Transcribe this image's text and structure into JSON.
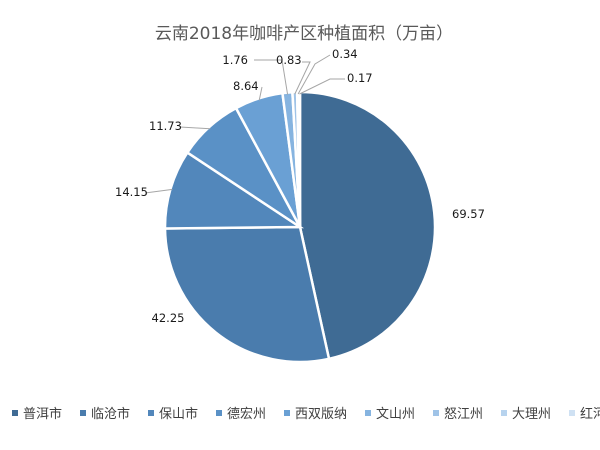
{
  "chart_data": {
    "type": "pie",
    "title": "云南2018年咖啡产区种植面积（万亩）",
    "categories": [
      "普洱市",
      "临沧市",
      "保山市",
      "德宏州",
      "西双版纳",
      "文山州",
      "怒江州",
      "大理州",
      "红河州"
    ],
    "values": [
      69.57,
      42.25,
      14.15,
      11.73,
      8.64,
      1.76,
      0.83,
      0.34,
      0.17
    ],
    "value_labels": [
      "69.57",
      "42.25",
      "14.15",
      "11.73",
      "8.64",
      "1.76",
      "0.83",
      "0.34",
      "0.17"
    ],
    "colors": [
      "#3f6b94",
      "#4a7cad",
      "#5287bb",
      "#5a91c6",
      "#6aa0d4",
      "#86b4e0",
      "#9fc3e7",
      "#b7d3ee",
      "#cfe1f3"
    ],
    "legend_position": "bottom"
  }
}
